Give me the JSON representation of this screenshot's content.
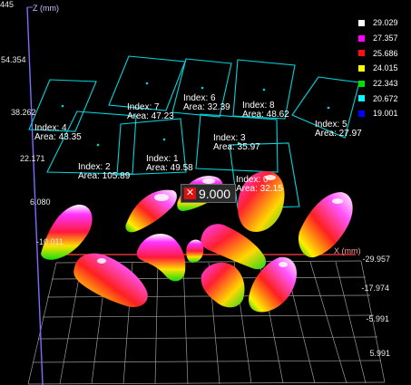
{
  "axes": {
    "z_title": "Z (mm)",
    "x_title": "X (mm)",
    "z_corner": "445",
    "z_ticks": [
      "54.354",
      "38.262",
      "22.171",
      "6.080",
      "-10.011"
    ],
    "y_ticks": [
      "-29.957",
      "-17.974",
      "-5.991",
      "5.991"
    ]
  },
  "legend": {
    "entries": [
      {
        "value": "29.029",
        "color": "#ffffff"
      },
      {
        "value": "27.357",
        "color": "#ff00ff"
      },
      {
        "value": "25.686",
        "color": "#ff1010"
      },
      {
        "value": "24.015",
        "color": "#ffff00"
      },
      {
        "value": "22.343",
        "color": "#00e000"
      },
      {
        "value": "20.672",
        "color": "#00ffff"
      },
      {
        "value": "19.001",
        "color": "#0000ff"
      }
    ]
  },
  "regions": [
    {
      "index": "Index: 0",
      "area": "Area: 32.15"
    },
    {
      "index": "Index: 1",
      "area": "Area: 49.58"
    },
    {
      "index": "Index: 2",
      "area": "Area: 105.89"
    },
    {
      "index": "Index: 3",
      "area": "Area: 35.97"
    },
    {
      "index": "Index: 4",
      "area": "Area: 43.35"
    },
    {
      "index": "Index: 5",
      "area": "Area: 27.97"
    },
    {
      "index": "Index: 6",
      "area": "Area: 32.39"
    },
    {
      "index": "Index: 7",
      "area": "Area: 47.23"
    },
    {
      "index": "Index: 8",
      "area": "Area: 48.62"
    }
  ],
  "marker": {
    "value": "9.000",
    "close_icon": "close-icon"
  },
  "colors": {
    "roi_outline": "#00d4dc",
    "grid": "#9a9a9a",
    "z_axis": "#7c6cff",
    "x_axis": "#ff4040"
  }
}
